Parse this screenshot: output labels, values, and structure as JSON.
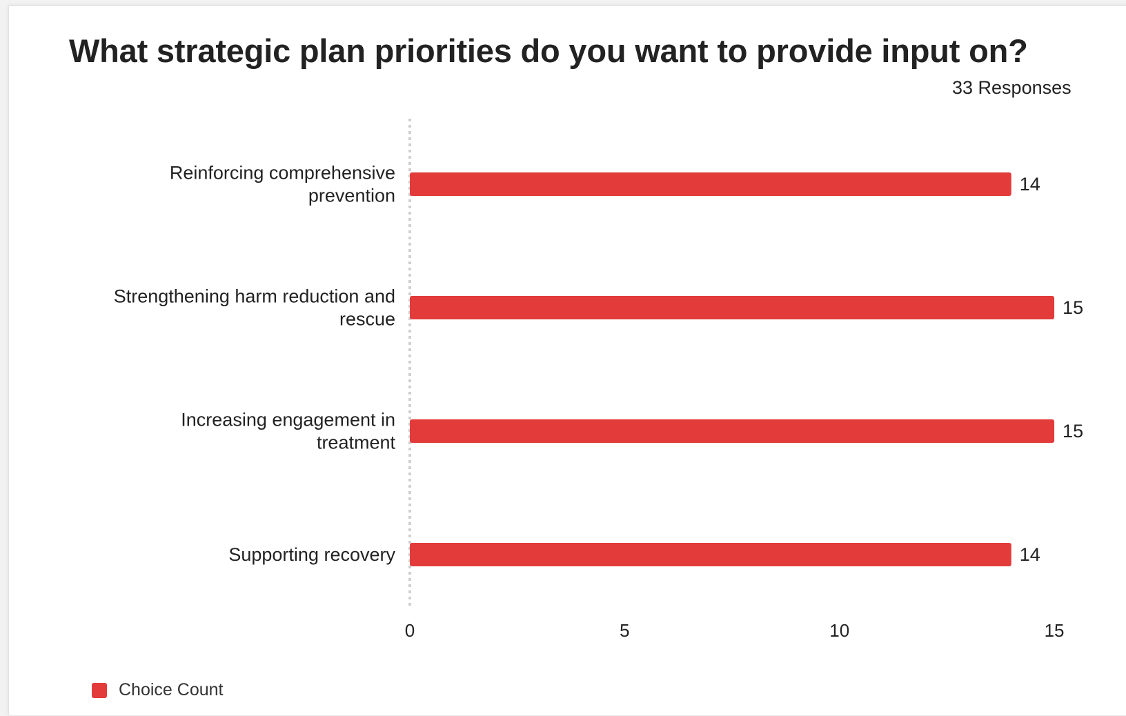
{
  "chart_data": {
    "type": "bar",
    "orientation": "horizontal",
    "title": "What strategic plan priorities do you want to provide input on?",
    "response_count_label": "33 Responses",
    "categories": [
      [
        "Reinforcing comprehensive",
        "prevention"
      ],
      [
        "Strengthening harm reduction and",
        "rescue"
      ],
      [
        "Increasing engagement in",
        "treatment"
      ],
      [
        "Supporting recovery"
      ]
    ],
    "series": [
      {
        "name": "Choice Count",
        "values": [
          14,
          15,
          15,
          14
        ],
        "color": "#e33a3a"
      }
    ],
    "xlim": [
      0,
      15
    ],
    "xticks": [
      "0",
      "5",
      "10",
      "15"
    ],
    "grid": false,
    "legend_position": "bottom-left"
  }
}
